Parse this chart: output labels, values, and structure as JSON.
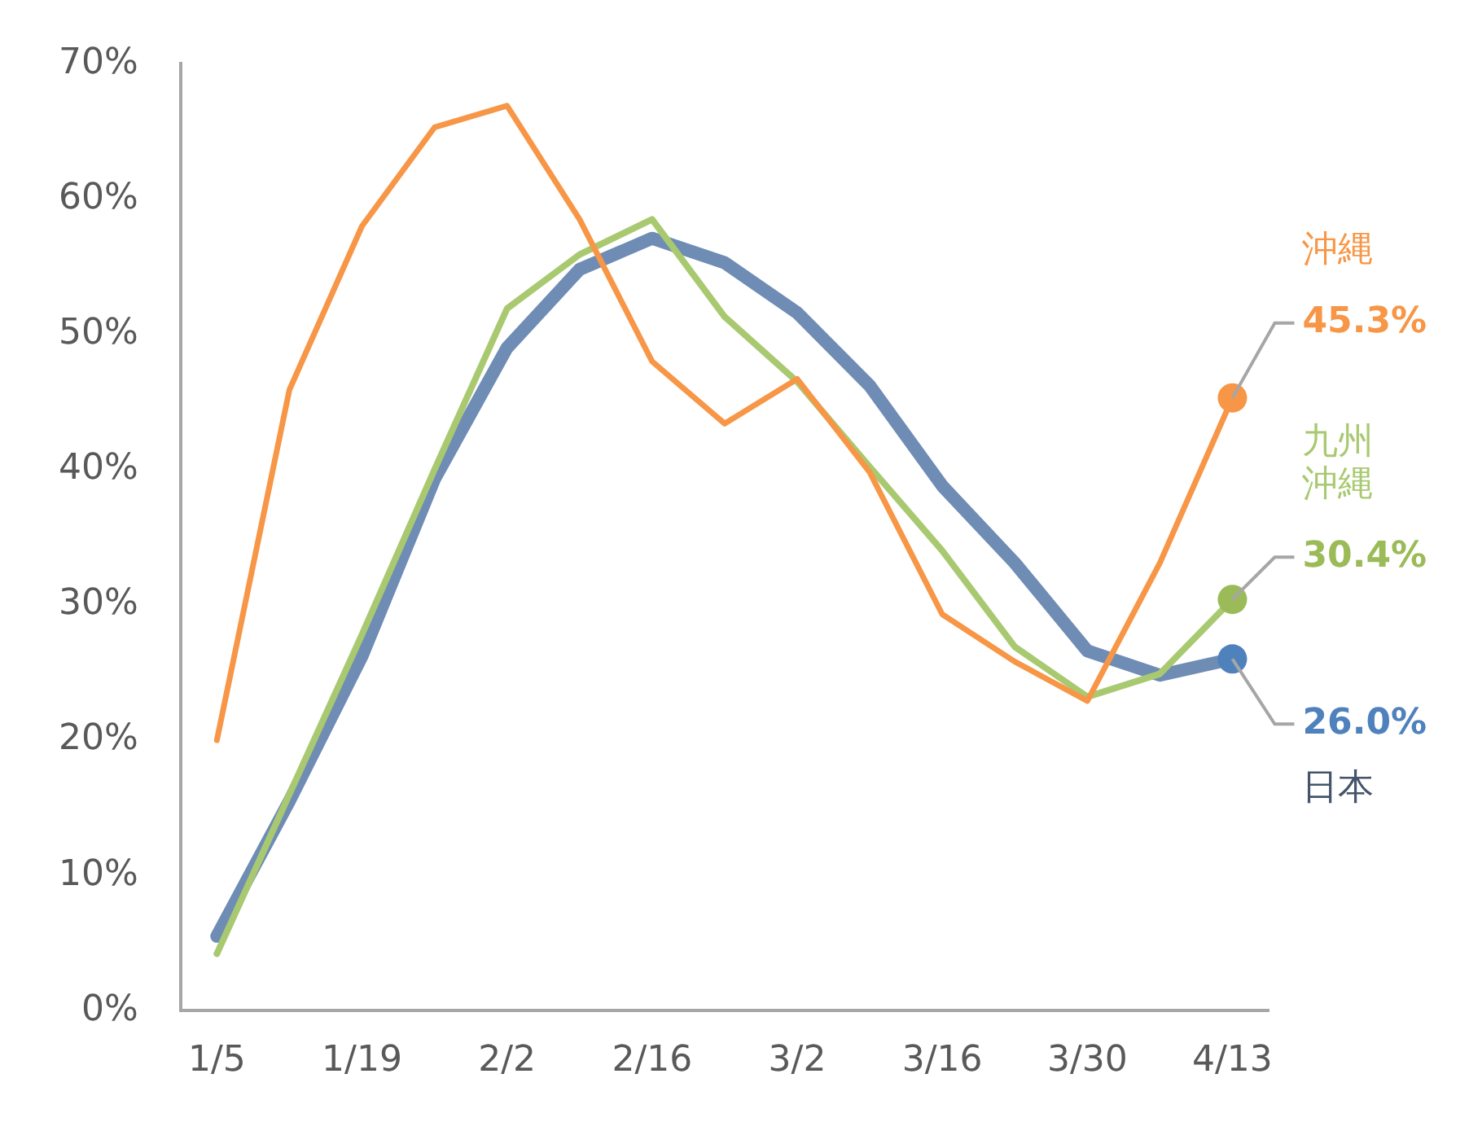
{
  "chart_data": {
    "type": "line",
    "categories": [
      "1/5",
      null,
      "1/19",
      null,
      "2/2",
      null,
      "2/16",
      null,
      "3/2",
      null,
      "3/16",
      null,
      "3/30",
      null,
      "4/13"
    ],
    "ylim": [
      0,
      70
    ],
    "yticks": [
      {
        "value": 0,
        "label": "0%"
      },
      {
        "value": 10,
        "label": "10%"
      },
      {
        "value": 20,
        "label": "20%"
      },
      {
        "value": 30,
        "label": "30%"
      },
      {
        "value": 40,
        "label": "40%"
      },
      {
        "value": 50,
        "label": "50%"
      },
      {
        "value": 60,
        "label": "60%"
      },
      {
        "value": 70,
        "label": "70%"
      }
    ],
    "grid": false,
    "legend": false,
    "series": [
      {
        "name": "日本",
        "color": "#6f8cb5",
        "values": [
          5.5,
          15.5,
          26.2,
          39.3,
          49.0,
          54.8,
          57.1,
          55.3,
          51.6,
          46.2,
          38.8,
          33.1,
          26.6,
          24.8,
          26.0
        ],
        "value_labels": [
          null,
          null,
          null,
          null,
          null,
          null,
          null,
          null,
          null,
          null,
          null,
          null,
          null,
          null,
          "26.0%"
        ]
      },
      {
        "name": "九州沖縄",
        "color": "#a9c971",
        "values": [
          4.2,
          16.0,
          27.8,
          40.0,
          51.9,
          55.9,
          58.5,
          51.3,
          46.5,
          40.2,
          34.0,
          26.9,
          23.2,
          24.9,
          30.4
        ],
        "value_labels": [
          null,
          null,
          null,
          null,
          null,
          null,
          null,
          null,
          null,
          null,
          null,
          null,
          null,
          null,
          "30.4%"
        ]
      },
      {
        "name": "沖縄",
        "color": "#f79646",
        "values": [
          20.0,
          45.9,
          58.0,
          65.3,
          66.9,
          58.5,
          48.0,
          43.4,
          46.7,
          39.8,
          29.3,
          25.8,
          22.9,
          33.1,
          45.3
        ],
        "value_labels": [
          null,
          null,
          null,
          null,
          null,
          null,
          null,
          null,
          null,
          null,
          null,
          null,
          null,
          null,
          "45.3%"
        ]
      }
    ]
  }
}
